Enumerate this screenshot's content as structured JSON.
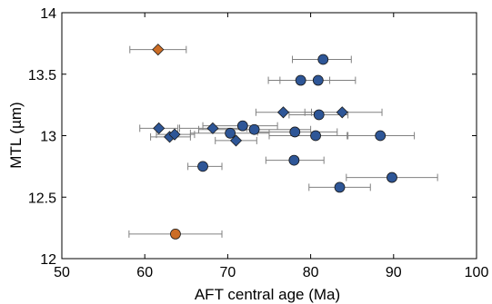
{
  "chart_data": {
    "type": "scatter",
    "title": "",
    "xlabel": "AFT central age (Ma)",
    "ylabel": "MTL (µm)",
    "xlim": [
      50,
      100
    ],
    "ylim": [
      12,
      14
    ],
    "xticks": [
      "50",
      "60",
      "70",
      "80",
      "90",
      "100"
    ],
    "yticks": [
      "12",
      "12.5",
      "13",
      "13.5",
      "14"
    ],
    "grid": false,
    "colors": {
      "blue": "#2e5697",
      "orange": "#cc6d26",
      "errorbar": "#808080",
      "axis": "#000000"
    },
    "series": [
      {
        "marker": "circle",
        "color": "blue",
        "points": [
          {
            "x": 81.5,
            "y": 13.62,
            "xerr": [
              77.8,
              84.9
            ]
          },
          {
            "x": 78.8,
            "y": 13.45,
            "xerr": [
              74.9,
              82.3
            ]
          },
          {
            "x": 80.9,
            "y": 13.45,
            "xerr": [
              76.3,
              85.4
            ]
          },
          {
            "x": 71.8,
            "y": 13.08,
            "xerr": [
              67.0,
              76.0
            ]
          },
          {
            "x": 73.2,
            "y": 13.05,
            "xerr": [
              66.5,
              80.0
            ]
          },
          {
            "x": 70.3,
            "y": 13.02,
            "xerr": [
              65.5,
              75.0
            ]
          },
          {
            "x": 81.0,
            "y": 13.17,
            "xerr": [
              77.4,
              84.5
            ]
          },
          {
            "x": 78.1,
            "y": 13.03,
            "xerr": [
              73.6,
              83.2
            ]
          },
          {
            "x": 80.6,
            "y": 13.0,
            "xerr": [
              75.0,
              84.5
            ]
          },
          {
            "x": 88.4,
            "y": 13.0,
            "xerr": [
              84.4,
              92.5
            ]
          },
          {
            "x": 67.0,
            "y": 12.75,
            "xerr": [
              65.2,
              69.3
            ]
          },
          {
            "x": 78.0,
            "y": 12.8,
            "xerr": [
              74.6,
              81.6
            ]
          },
          {
            "x": 83.5,
            "y": 12.58,
            "xerr": [
              79.8,
              87.2
            ]
          },
          {
            "x": 89.8,
            "y": 12.66,
            "xerr": [
              84.3,
              95.3
            ]
          }
        ]
      },
      {
        "marker": "diamond",
        "color": "blue",
        "points": [
          {
            "x": 61.7,
            "y": 13.06,
            "xerr": [
              59.4,
              64.0
            ]
          },
          {
            "x": 63.0,
            "y": 12.99,
            "xerr": [
              60.7,
              65.5
            ]
          },
          {
            "x": 63.6,
            "y": 13.01,
            "xerr": [
              61.4,
              66.0
            ]
          },
          {
            "x": 68.2,
            "y": 13.06,
            "xerr": [
              64.2,
              72.3
            ]
          },
          {
            "x": 71.0,
            "y": 12.96,
            "xerr": [
              68.5,
              73.5
            ]
          },
          {
            "x": 76.7,
            "y": 13.19,
            "xerr": [
              73.4,
              80.1
            ]
          },
          {
            "x": 83.8,
            "y": 13.19,
            "xerr": [
              79.3,
              88.6
            ]
          }
        ]
      },
      {
        "marker": "diamond",
        "color": "orange",
        "points": [
          {
            "x": 61.6,
            "y": 13.7,
            "xerr": [
              58.2,
              65.0
            ]
          }
        ]
      },
      {
        "marker": "circle",
        "color": "orange",
        "points": [
          {
            "x": 63.7,
            "y": 12.2,
            "xerr": [
              58.1,
              69.3
            ]
          }
        ]
      }
    ]
  }
}
